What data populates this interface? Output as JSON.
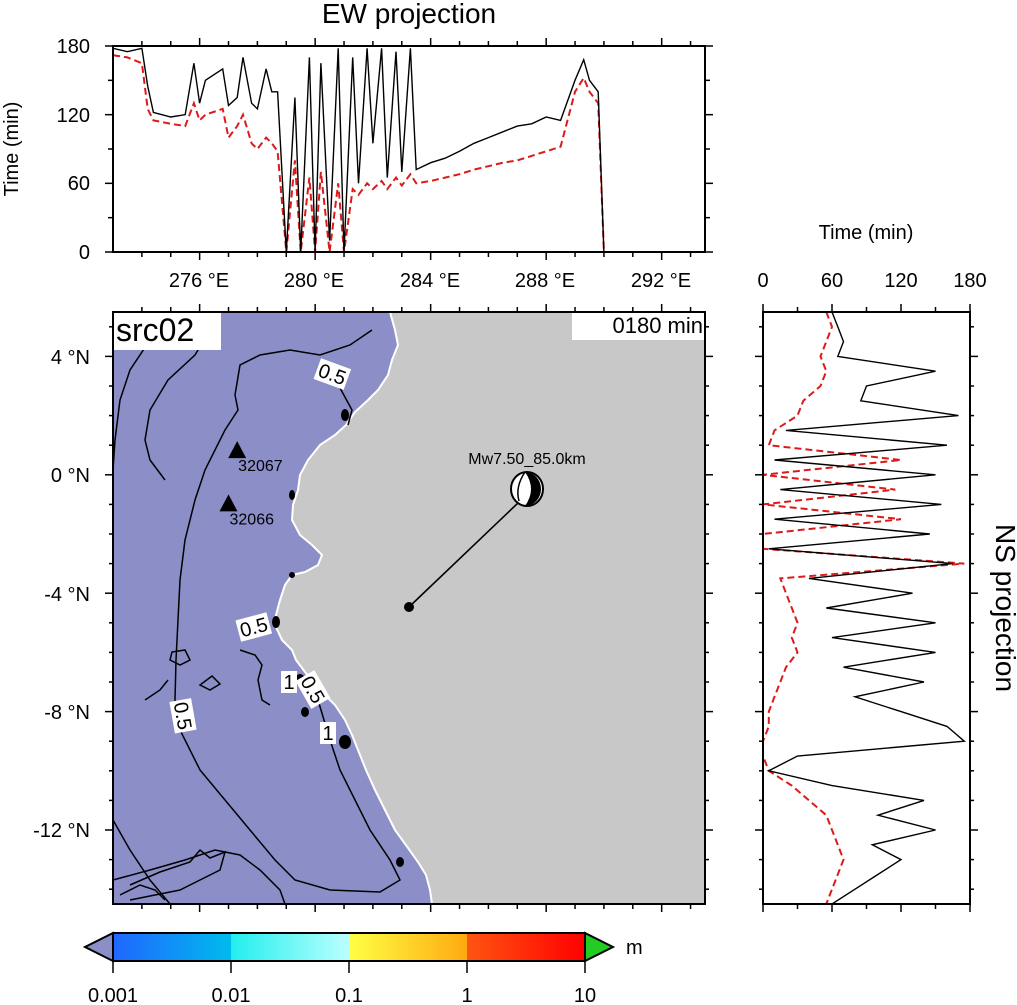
{
  "ew_panel": {
    "title": "EW projection",
    "ylabel": "Time (min)",
    "yticks": [
      "0",
      "60",
      "120",
      "180"
    ],
    "xticks": [
      "276 °E",
      "280 °E",
      "284 °E",
      "288 °E",
      "292 °E"
    ]
  },
  "ns_panel": {
    "title": "NS projection",
    "xlabel": "Time (min)",
    "xticks": [
      "0",
      "60",
      "120",
      "180"
    ]
  },
  "map": {
    "source_label": "src02",
    "time_label": "0180 min",
    "lat_ticks": [
      "4 °N",
      "0 °N",
      "-4 °N",
      "-8 °N",
      "-12 °N"
    ],
    "event_label": "Mw7.50_85.0km",
    "stations": [
      {
        "id": "32067",
        "lon": 277.3,
        "lat": 0.8
      },
      {
        "id": "32066",
        "lon": 277.0,
        "lat": -1.0
      }
    ],
    "epicenter": {
      "lon": 282.0,
      "lat": -4.5
    },
    "contour_labels": [
      "0.5",
      "0.5",
      "0.5",
      "0.5",
      "1",
      "1"
    ]
  },
  "colorbar": {
    "unit": "m",
    "tick_labels": [
      "0.001",
      "0.01",
      "0.1",
      "1",
      "10"
    ],
    "colors": {
      "below": "#8c8ec8",
      "above": "#22cc22",
      "seg1": [
        "#2066ff",
        "#00bbee"
      ],
      "seg2": [
        "#22eeee",
        "#bbffff"
      ],
      "seg3": [
        "#ffff44",
        "#ffaa11"
      ],
      "seg4": [
        "#ff5511",
        "#ff0000"
      ]
    }
  },
  "chart_data": [
    {
      "type": "line",
      "title": "EW projection",
      "xlabel": "",
      "ylabel": "Time (min)",
      "xlim": [
        273,
        293.5
      ],
      "ylim": [
        0,
        180
      ],
      "series": [
        {
          "x": [
            273.0,
            273.5,
            274.0,
            274.2,
            274.4,
            275.0,
            275.5,
            275.8,
            276.0,
            276.2,
            276.8,
            277.0,
            277.3,
            277.5,
            277.8,
            278.0,
            278.3,
            278.5,
            278.7,
            279.0,
            279.3,
            279.5,
            279.8,
            280.0,
            280.2,
            280.5,
            280.8,
            281.0,
            281.3,
            281.5,
            281.8,
            282.0,
            282.3,
            282.5,
            282.8,
            283.0,
            283.3,
            283.5,
            284.0,
            284.5,
            285.0,
            285.5,
            286.0,
            286.5,
            287.0,
            287.5,
            288.0,
            288.5,
            289.0,
            289.3,
            289.5,
            289.8,
            290.0
          ],
          "y": [
            178,
            175,
            178,
            145,
            122,
            118,
            120,
            165,
            130,
            150,
            160,
            128,
            135,
            170,
            130,
            125,
            160,
            140,
            140,
            0,
            135,
            0,
            170,
            0,
            165,
            10,
            178,
            0,
            170,
            60,
            178,
            95,
            178,
            65,
            175,
            70,
            178,
            72,
            78,
            82,
            88,
            95,
            100,
            105,
            110,
            112,
            118,
            115,
            150,
            168,
            150,
            140,
            0
          ]
        },
        {
          "x": [
            273.0,
            273.5,
            274.0,
            274.2,
            274.4,
            275.0,
            275.5,
            275.8,
            276.0,
            276.2,
            276.8,
            277.0,
            277.3,
            277.5,
            277.8,
            278.0,
            278.3,
            278.5,
            278.7,
            279.0,
            279.3,
            279.5,
            279.8,
            280.0,
            280.2,
            280.5,
            280.8,
            281.0,
            281.3,
            281.5,
            281.8,
            282.0,
            282.3,
            282.5,
            282.8,
            283.0,
            283.3,
            283.5,
            284.0,
            284.5,
            285.0,
            285.5,
            286.0,
            286.5,
            287.0,
            287.5,
            288.0,
            288.5,
            289.0,
            289.3,
            289.5,
            289.8,
            290.0
          ],
          "y": [
            172,
            170,
            165,
            125,
            115,
            112,
            110,
            130,
            115,
            120,
            125,
            100,
            110,
            120,
            95,
            90,
            100,
            95,
            88,
            0,
            80,
            0,
            65,
            0,
            70,
            0,
            60,
            0,
            55,
            50,
            60,
            55,
            62,
            55,
            65,
            58,
            68,
            60,
            62,
            65,
            68,
            72,
            75,
            78,
            80,
            84,
            88,
            92,
            140,
            152,
            140,
            130,
            0
          ]
        }
      ]
    },
    {
      "type": "line",
      "title": "NS projection",
      "xlabel": "Time (min)",
      "ylabel": "",
      "xlim": [
        0,
        180
      ],
      "ylim": [
        -14.5,
        5.5
      ],
      "series": [
        {
          "y": [
            5.5,
            5.0,
            4.5,
            4.0,
            3.5,
            3.0,
            2.5,
            2.0,
            1.5,
            1.0,
            0.5,
            0.0,
            -0.5,
            -1.0,
            -1.5,
            -2.0,
            -2.5,
            -3.0,
            -3.5,
            -4.0,
            -4.5,
            -5.0,
            -5.5,
            -6.0,
            -6.5,
            -7.0,
            -7.5,
            -8.0,
            -8.5,
            -9.0,
            -9.5,
            -10.0,
            -10.5,
            -11.0,
            -11.5,
            -12.0,
            -12.5,
            -13.0,
            -13.5,
            -14.0,
            -14.5
          ],
          "x": [
            60,
            65,
            70,
            65,
            150,
            90,
            85,
            170,
            20,
            160,
            10,
            150,
            15,
            155,
            10,
            145,
            5,
            165,
            40,
            130,
            55,
            150,
            60,
            150,
            70,
            140,
            80,
            120,
            160,
            175,
            30,
            5,
            60,
            140,
            100,
            150,
            95,
            120,
            100,
            80,
            60
          ]
        },
        {
          "y": [
            5.5,
            5.0,
            4.5,
            4.0,
            3.5,
            3.0,
            2.5,
            2.0,
            1.5,
            1.0,
            0.5,
            0.0,
            -0.5,
            -1.0,
            -1.5,
            -2.0,
            -2.5,
            -3.0,
            -3.5,
            -4.0,
            -4.5,
            -5.0,
            -5.5,
            -6.0,
            -6.5,
            -7.0,
            -7.5,
            -8.0,
            -8.5,
            -9.0,
            -9.5,
            -10.0,
            -10.5,
            -11.0,
            -11.5,
            -12.0,
            -12.5,
            -13.0,
            -13.5,
            -14.0,
            -14.5
          ],
          "x": [
            55,
            60,
            55,
            50,
            55,
            50,
            35,
            30,
            10,
            5,
            120,
            0,
            115,
            0,
            120,
            0,
            0,
            175,
            15,
            20,
            25,
            30,
            25,
            30,
            20,
            15,
            10,
            5,
            5,
            0,
            0,
            5,
            25,
            40,
            55,
            60,
            65,
            70,
            65,
            60,
            55
          ]
        }
      ]
    }
  ]
}
